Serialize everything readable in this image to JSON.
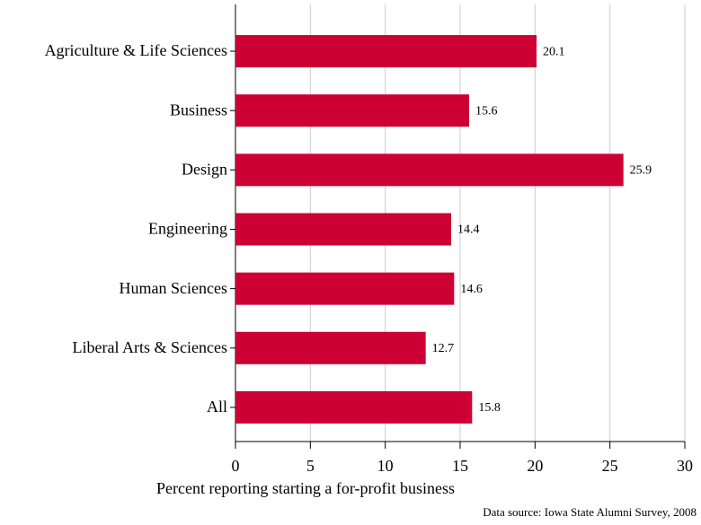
{
  "chart_data": {
    "type": "bar",
    "orientation": "horizontal",
    "categories": [
      "Agriculture & Life Sciences",
      "Business",
      "Design",
      "Engineering",
      "Human Sciences",
      "Liberal Arts & Sciences",
      "All"
    ],
    "values": [
      20.1,
      15.6,
      25.9,
      14.4,
      14.6,
      12.7,
      15.8
    ],
    "color": "#cc0033",
    "xlabel": "Percent reporting starting a for-profit business",
    "source": "Data source: Iowa State Alumni Survey, 2008",
    "xlim": [
      0,
      30
    ],
    "xticks": [
      0,
      5,
      10,
      15,
      20,
      25,
      30
    ],
    "grid": true
  }
}
